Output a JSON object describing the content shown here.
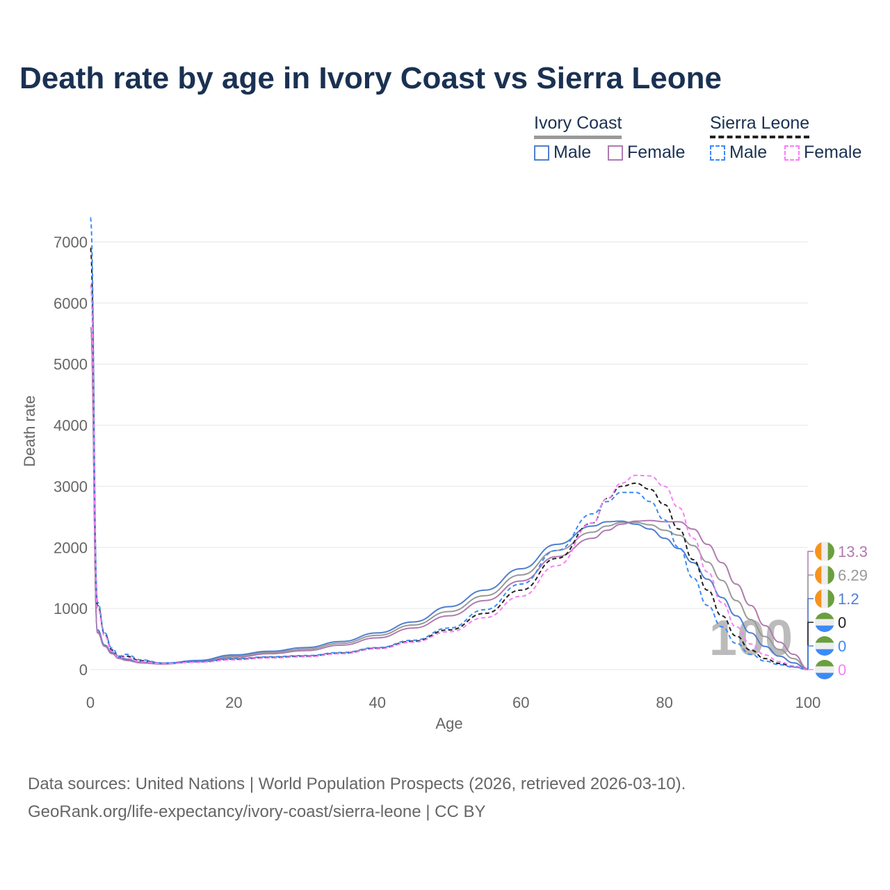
{
  "title": "Death rate by age in Ivory Coast vs Sierra Leone",
  "legend": {
    "groups": [
      {
        "name": "Ivory Coast",
        "items": [
          "Male",
          "Female"
        ]
      },
      {
        "name": "Sierra Leone",
        "items": [
          "Male",
          "Female"
        ]
      }
    ]
  },
  "source": {
    "line1": "Data sources: United Nations | World Population Prospects (2026, retrieved 2026-03-10).",
    "line2": "GeoRank.org/life-expectancy/ivory-coast/sierra-leone | CC BY"
  },
  "watermark": "100",
  "chart_data": {
    "type": "line",
    "title": "Death rate by age in Ivory Coast vs Sierra Leone",
    "xlabel": "Age",
    "ylabel": "Death rate",
    "xlim": [
      0,
      100
    ],
    "ylim": [
      0,
      7400
    ],
    "xticks": [
      0,
      20,
      40,
      60,
      80,
      100
    ],
    "yticks": [
      0,
      1000,
      2000,
      3000,
      4000,
      5000,
      6000,
      7000
    ],
    "x": [
      0,
      1,
      2,
      3,
      4,
      5,
      7,
      10,
      15,
      20,
      25,
      30,
      35,
      40,
      45,
      50,
      55,
      60,
      65,
      70,
      72,
      74,
      76,
      78,
      80,
      82,
      84,
      86,
      88,
      90,
      92,
      94,
      96,
      98,
      100
    ],
    "series": [
      {
        "name": "Ivory Coast Male",
        "color": "#4f7fcf",
        "dash": false,
        "end_label": "1.2",
        "flag": "ivory-coast",
        "values": [
          5600,
          650,
          400,
          280,
          200,
          170,
          120,
          100,
          150,
          240,
          300,
          360,
          460,
          600,
          780,
          1030,
          1300,
          1650,
          2050,
          2350,
          2420,
          2430,
          2380,
          2300,
          2150,
          1980,
          1750,
          1480,
          1180,
          880,
          600,
          380,
          220,
          110,
          1.2
        ]
      },
      {
        "name": "Ivory Coast Female",
        "color": "#b07aaf",
        "dash": false,
        "end_label": "13.3",
        "flag": "ivory-coast",
        "values": [
          5600,
          600,
          380,
          260,
          180,
          150,
          110,
          90,
          130,
          200,
          260,
          310,
          400,
          520,
          680,
          880,
          1130,
          1450,
          1850,
          2150,
          2280,
          2380,
          2430,
          2440,
          2420,
          2420,
          2300,
          2050,
          1750,
          1400,
          1050,
          720,
          450,
          250,
          13.3
        ]
      },
      {
        "name": "Ivory Coast",
        "color": "#999999",
        "dash": false,
        "end_label": "6.29",
        "flag": "ivory-coast",
        "values": [
          5600,
          620,
          390,
          270,
          190,
          160,
          115,
          95,
          140,
          220,
          280,
          335,
          430,
          560,
          730,
          950,
          1210,
          1550,
          1950,
          2250,
          2350,
          2410,
          2410,
          2370,
          2280,
          2200,
          2030,
          1760,
          1460,
          1130,
          820,
          540,
          330,
          180,
          6.29
        ]
      },
      {
        "name": "Sierra Leone",
        "color": "#222222",
        "dash": true,
        "end_label": "0",
        "flag": "sierra-leone",
        "values": [
          6900,
          1050,
          580,
          320,
          210,
          220,
          145,
          105,
          125,
          170,
          200,
          220,
          270,
          350,
          465,
          650,
          920,
          1300,
          1820,
          2400,
          2800,
          3000,
          3050,
          2950,
          2700,
          2300,
          1800,
          1300,
          880,
          550,
          320,
          180,
          100,
          50,
          0
        ]
      },
      {
        "name": "Sierra Leone Male",
        "color": "#3d8af7",
        "dash": true,
        "end_label": "0",
        "flag": "sierra-leone",
        "values": [
          7400,
          1100,
          600,
          350,
          220,
          250,
          160,
          110,
          130,
          180,
          210,
          230,
          280,
          360,
          480,
          680,
          980,
          1400,
          1950,
          2550,
          2750,
          2900,
          2900,
          2750,
          2450,
          2000,
          1500,
          1050,
          700,
          430,
          250,
          140,
          80,
          40,
          0
        ]
      },
      {
        "name": "Sierra Leone Female",
        "color": "#f77ff7",
        "dash": true,
        "end_label": "0",
        "flag": "sierra-leone",
        "values": [
          6300,
          1000,
          550,
          300,
          200,
          200,
          130,
          100,
          120,
          160,
          190,
          210,
          260,
          340,
          450,
          620,
          850,
          1200,
          1700,
          2400,
          2800,
          3050,
          3180,
          3170,
          3000,
          2650,
          2150,
          1600,
          1100,
          700,
          420,
          240,
          130,
          60,
          0
        ]
      }
    ],
    "grid": true,
    "legend_position": "top-right"
  }
}
